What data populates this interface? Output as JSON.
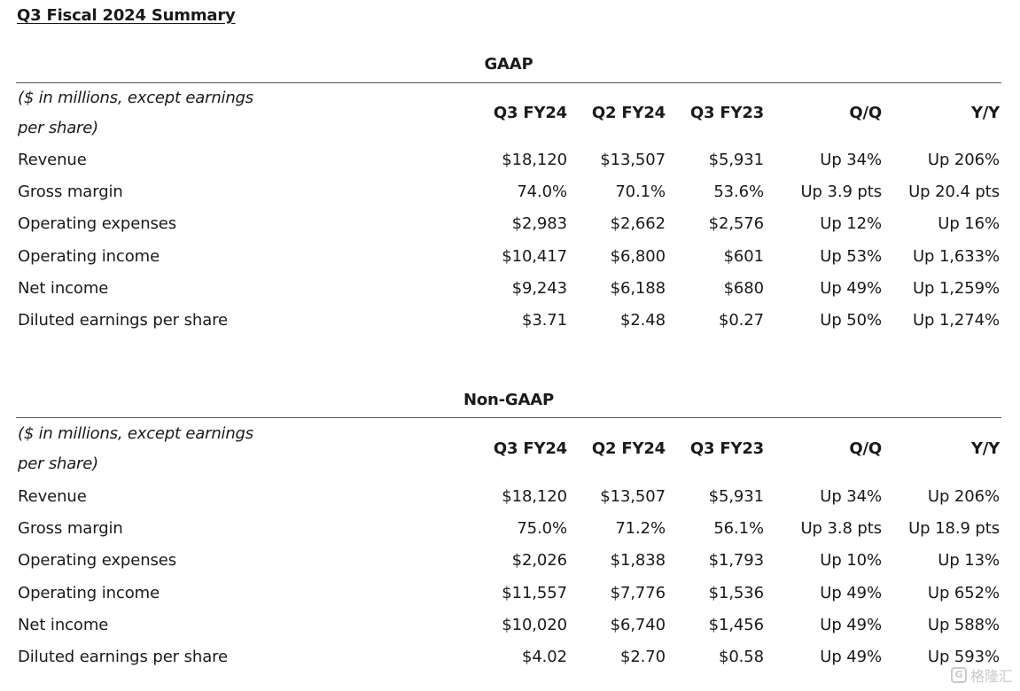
{
  "title": "Q3 Fiscal 2024 Summary",
  "columns": [
    "Q3 FY24",
    "Q2 FY24",
    "Q3 FY23",
    "Q/Q",
    "Y/Y"
  ],
  "unit_note": "($ in millions, except earnings per share)",
  "gaap": {
    "title": "GAAP",
    "rows": [
      {
        "label": "Revenue",
        "values": [
          "$18,120",
          "$13,507",
          "$5,931",
          "Up 34%",
          "Up 206%"
        ]
      },
      {
        "label": "Gross margin",
        "values": [
          "74.0%",
          "70.1%",
          "53.6%",
          "Up 3.9 pts",
          "Up 20.4 pts"
        ]
      },
      {
        "label": "Operating expenses",
        "values": [
          "$2,983",
          "$2,662",
          "$2,576",
          "Up 12%",
          "Up 16%"
        ]
      },
      {
        "label": "Operating income",
        "values": [
          "$10,417",
          "$6,800",
          "$601",
          "Up 53%",
          "Up 1,633%"
        ]
      },
      {
        "label": "Net income",
        "values": [
          "$9,243",
          "$6,188",
          "$680",
          "Up 49%",
          "Up 1,259%"
        ]
      },
      {
        "label": "Diluted earnings per share",
        "values": [
          "$3.71",
          "$2.48",
          "$0.27",
          "Up 50%",
          "Up 1,274%"
        ]
      }
    ]
  },
  "nongaap": {
    "title": "Non-GAAP",
    "rows": [
      {
        "label": "Revenue",
        "values": [
          "$18,120",
          "$13,507",
          "$5,931",
          "Up 34%",
          "Up 206%"
        ]
      },
      {
        "label": "Gross margin",
        "values": [
          "75.0%",
          "71.2%",
          "56.1%",
          "Up 3.8 pts",
          "Up 18.9 pts"
        ]
      },
      {
        "label": "Operating expenses",
        "values": [
          "$2,026",
          "$1,838",
          "$1,793",
          "Up 10%",
          "Up 13%"
        ]
      },
      {
        "label": "Operating income",
        "values": [
          "$11,557",
          "$7,776",
          "$1,536",
          "Up 49%",
          "Up 652%"
        ]
      },
      {
        "label": "Net income",
        "values": [
          "$10,020",
          "$6,740",
          "$1,456",
          "Up 49%",
          "Up 588%"
        ]
      },
      {
        "label": "Diluted earnings per share",
        "values": [
          "$4.02",
          "$2.70",
          "$0.58",
          "Up 49%",
          "Up 593%"
        ]
      }
    ]
  },
  "watermark": {
    "logo": "G",
    "text": "格隆汇"
  }
}
